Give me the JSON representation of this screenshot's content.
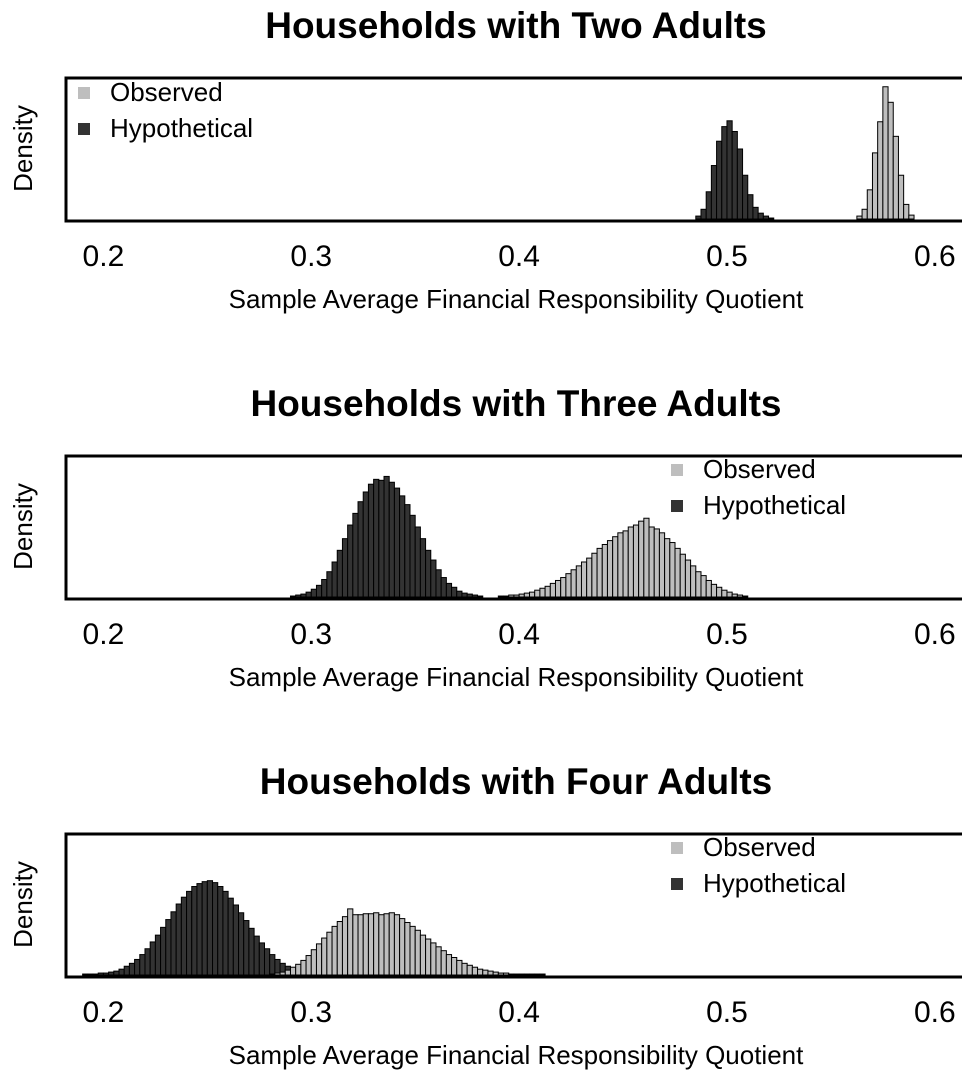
{
  "chart_data": [
    {
      "type": "histogram",
      "title": "Households with Two Adults",
      "xlabel": "Sample Average Financial Responsibility Quotient",
      "ylabel": "Density",
      "xlim": [
        0.182,
        0.615
      ],
      "ylim": [
        0,
        145
      ],
      "xticks": [
        0.2,
        0.3,
        0.4,
        0.5,
        0.6
      ],
      "legend": "top-left",
      "series": [
        {
          "name": "Observed",
          "color": "#bebebe",
          "bins": [
            0.5625,
            0.565,
            0.5675,
            0.57,
            0.5725,
            0.575,
            0.5775,
            0.58,
            0.5825,
            0.585,
            0.5875,
            0.59
          ],
          "values": [
            3,
            10,
            30,
            68,
            100,
            136,
            120,
            85,
            45,
            15,
            4
          ]
        },
        {
          "name": "Hypothetical",
          "color": "#333333",
          "bins": [
            0.485,
            0.4875,
            0.49,
            0.4925,
            0.495,
            0.4975,
            0.5,
            0.5025,
            0.505,
            0.5075,
            0.51,
            0.5125,
            0.515,
            0.5175,
            0.52,
            0.5225
          ],
          "values": [
            3,
            10,
            28,
            55,
            80,
            95,
            101,
            90,
            72,
            45,
            25,
            12,
            6,
            3,
            1
          ]
        }
      ]
    },
    {
      "type": "histogram",
      "title": "Households with Three Adults",
      "xlabel": "Sample Average Financial Responsibility Quotient",
      "ylabel": "Density",
      "xlim": [
        0.182,
        0.615
      ],
      "ylim": [
        0,
        145
      ],
      "xticks": [
        0.2,
        0.3,
        0.4,
        0.5,
        0.6
      ],
      "legend": "top-right",
      "series": [
        {
          "name": "Observed",
          "color": "#bebebe",
          "bins": [
            0.39,
            0.3925,
            0.395,
            0.3975,
            0.4,
            0.4025,
            0.405,
            0.4075,
            0.41,
            0.4125,
            0.415,
            0.4175,
            0.42,
            0.4225,
            0.425,
            0.4275,
            0.43,
            0.4325,
            0.435,
            0.4375,
            0.44,
            0.4425,
            0.445,
            0.4475,
            0.45,
            0.4525,
            0.455,
            0.4575,
            0.46,
            0.4625,
            0.465,
            0.4675,
            0.47,
            0.4725,
            0.475,
            0.4775,
            0.48,
            0.4825,
            0.485,
            0.4875,
            0.49,
            0.4925,
            0.495,
            0.4975,
            0.5,
            0.5025,
            0.505,
            0.5075,
            0.51
          ],
          "values": [
            1,
            1,
            2,
            2,
            3,
            4,
            5,
            7,
            9,
            11,
            14,
            17,
            20,
            24,
            28,
            32,
            36,
            40,
            45,
            50,
            54,
            58,
            62,
            66,
            68,
            72,
            74,
            78,
            81,
            72,
            70,
            66,
            60,
            56,
            50,
            44,
            38,
            32,
            26,
            22,
            17,
            13,
            10,
            7,
            5,
            3,
            2,
            1
          ]
        },
        {
          "name": "Hypothetical",
          "color": "#333333",
          "bins": [
            0.29,
            0.2925,
            0.295,
            0.2975,
            0.3,
            0.3025,
            0.305,
            0.3075,
            0.31,
            0.3125,
            0.315,
            0.3175,
            0.32,
            0.3225,
            0.325,
            0.3275,
            0.33,
            0.3325,
            0.335,
            0.3375,
            0.34,
            0.3425,
            0.345,
            0.3475,
            0.35,
            0.3525,
            0.355,
            0.3575,
            0.36,
            0.3625,
            0.365,
            0.3675,
            0.37,
            0.3725,
            0.375,
            0.3775,
            0.38,
            0.3825
          ],
          "values": [
            1,
            2,
            3,
            5,
            8,
            12,
            18,
            26,
            36,
            48,
            60,
            74,
            86,
            98,
            108,
            116,
            121,
            120,
            124,
            118,
            112,
            104,
            95,
            84,
            72,
            60,
            48,
            38,
            28,
            20,
            14,
            10,
            6,
            4,
            3,
            2,
            1
          ]
        }
      ]
    },
    {
      "type": "histogram",
      "title": "Households with Four Adults",
      "xlabel": "Sample Average Financial Responsibility Quotient",
      "ylabel": "Density",
      "xlim": [
        0.182,
        0.615
      ],
      "ylim": [
        0,
        145
      ],
      "xticks": [
        0.2,
        0.3,
        0.4,
        0.5,
        0.6
      ],
      "legend": "top-right",
      "series": [
        {
          "name": "Observed",
          "color": "#bebebe",
          "bins": [
            0.28,
            0.2825,
            0.285,
            0.2875,
            0.29,
            0.2925,
            0.295,
            0.2975,
            0.3,
            0.3025,
            0.305,
            0.3075,
            0.31,
            0.3125,
            0.315,
            0.3175,
            0.32,
            0.3225,
            0.325,
            0.3275,
            0.33,
            0.3325,
            0.335,
            0.3375,
            0.34,
            0.3425,
            0.345,
            0.3475,
            0.35,
            0.3525,
            0.355,
            0.3575,
            0.36,
            0.3625,
            0.365,
            0.3675,
            0.37,
            0.3725,
            0.375,
            0.3775,
            0.38,
            0.3825,
            0.385,
            0.3875,
            0.39,
            0.3925,
            0.395,
            0.3975,
            0.4,
            0.4025,
            0.405,
            0.4075,
            0.41,
            0.4125
          ],
          "values": [
            1,
            2,
            3,
            5,
            8,
            11,
            15,
            20,
            26,
            32,
            38,
            44,
            50,
            55,
            60,
            68,
            62,
            62,
            63,
            63,
            64,
            62,
            63,
            64,
            62,
            58,
            54,
            50,
            46,
            41,
            37,
            33,
            29,
            25,
            21,
            18,
            15,
            12,
            10,
            8,
            6,
            5,
            4,
            3,
            2,
            2,
            1,
            1,
            1,
            1,
            1,
            1,
            1
          ]
        },
        {
          "name": "Hypothetical",
          "color": "#333333",
          "bins": [
            0.19,
            0.1925,
            0.195,
            0.1975,
            0.2,
            0.2025,
            0.205,
            0.2075,
            0.21,
            0.2125,
            0.215,
            0.2175,
            0.22,
            0.2225,
            0.225,
            0.2275,
            0.23,
            0.2325,
            0.235,
            0.2375,
            0.24,
            0.2425,
            0.245,
            0.2475,
            0.25,
            0.2525,
            0.255,
            0.2575,
            0.26,
            0.2625,
            0.265,
            0.2675,
            0.27,
            0.2725,
            0.275,
            0.2775,
            0.28,
            0.2825,
            0.285,
            0.2875,
            0.29,
            0.2925,
            0.295,
            0.2975,
            0.3
          ],
          "values": [
            1,
            1,
            1,
            2,
            2,
            3,
            4,
            6,
            9,
            12,
            16,
            21,
            27,
            34,
            41,
            49,
            57,
            65,
            73,
            80,
            86,
            91,
            94,
            96,
            97,
            95,
            91,
            86,
            79,
            72,
            64,
            56,
            48,
            40,
            33,
            27,
            21,
            16,
            12,
            9,
            6,
            4,
            3,
            2
          ]
        }
      ]
    }
  ]
}
